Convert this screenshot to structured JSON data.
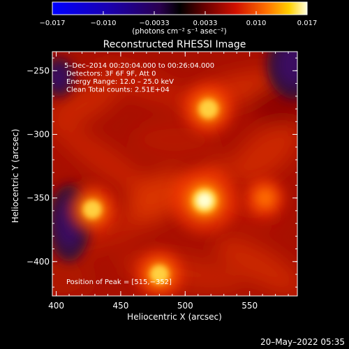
{
  "chart_data": {
    "type": "heatmap",
    "title": "Reconstructed RHESSI Image",
    "xlabel": "Heliocentric X (arcsec)",
    "ylabel": "Heliocentric Y (arcsec)",
    "x_ticks": [
      "400",
      "450",
      "500",
      "550"
    ],
    "y_ticks": [
      "-250",
      "-300",
      "-350",
      "-400"
    ],
    "xlim": [
      397,
      587
    ],
    "ylim": [
      -427,
      -235
    ],
    "colorbar": {
      "ticks": [
        "−0.017",
        "−0.010",
        "−0.0033",
        "0.0033",
        "0.010",
        "0.017"
      ],
      "range": [
        -0.017,
        0.017
      ],
      "units": "(photons cm⁻² s⁻¹ asec⁻²)"
    },
    "annotations": [
      "5–Dec–2014 00:20:04.000 to 00:26:04.000",
      "Detectors: 3F 6F 9F, Att 0",
      "Energy Range: 12.0 – 25.0 keV",
      "Clean    Total counts: 2.51E+04"
    ],
    "peak_text": "Position of Peak = [515,−352]",
    "sources": [
      {
        "x": 515,
        "y": -352,
        "value": 0.017
      },
      {
        "x": 518,
        "y": -280,
        "value": 0.011
      },
      {
        "x": 428,
        "y": -359,
        "value": 0.01
      },
      {
        "x": 480,
        "y": -410,
        "value": 0.01
      },
      {
        "x": 562,
        "y": -350,
        "value": 0.006
      }
    ],
    "background_value": 0.004,
    "negative_regions": [
      {
        "x": 410,
        "y": -370,
        "value": -0.004
      },
      {
        "x": 585,
        "y": -245,
        "value": -0.006
      },
      {
        "x": 402,
        "y": -255,
        "value": -0.003
      }
    ]
  },
  "footer_timestamp": "20–May–2022 05:35"
}
